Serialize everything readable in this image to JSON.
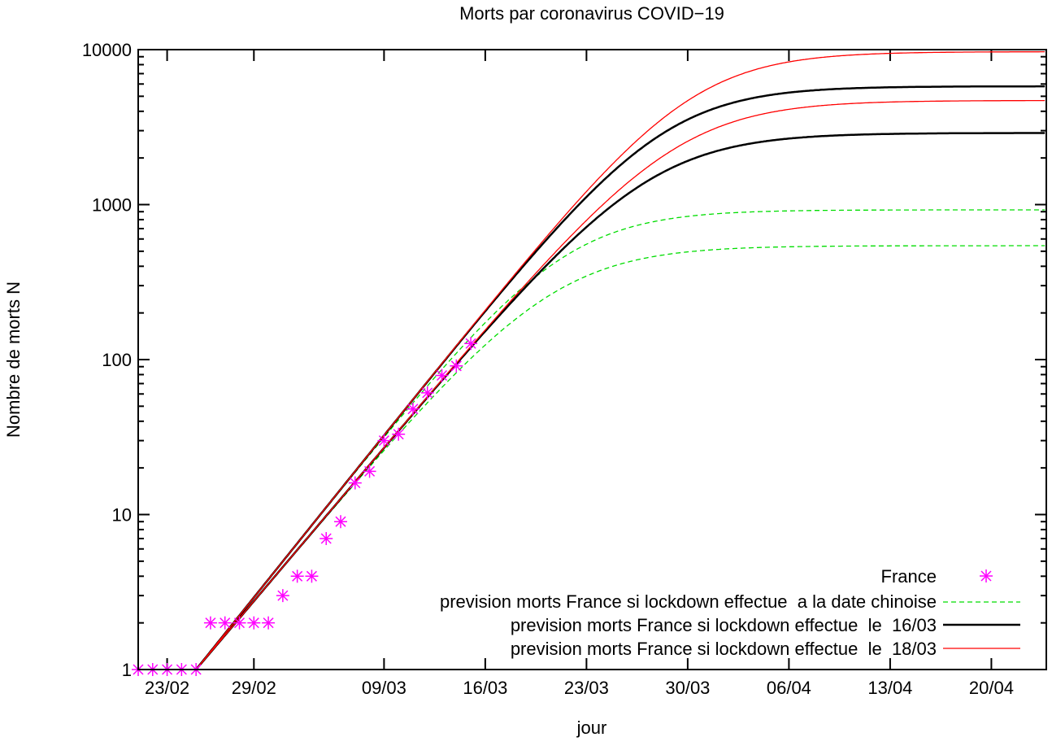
{
  "chart_data": {
    "type": "line",
    "title": "Morts par coronavirus COVID−19",
    "xlabel": "jour",
    "ylabel": "Nombre de morts N",
    "yscale": "log",
    "ylim": [
      1,
      10000
    ],
    "xlim_days": [
      0,
      62.8
    ],
    "x_origin_date": "21/02",
    "yticks": [
      {
        "v": 1,
        "label": "1"
      },
      {
        "v": 10,
        "label": "10"
      },
      {
        "v": 100,
        "label": "100"
      },
      {
        "v": 1000,
        "label": "1000"
      },
      {
        "v": 10000,
        "label": "10000"
      }
    ],
    "xticks": [
      {
        "day": 2,
        "label": "23/02"
      },
      {
        "day": 8,
        "label": "29/02"
      },
      {
        "day": 17,
        "label": "09/03"
      },
      {
        "day": 24,
        "label": "16/03"
      },
      {
        "day": 31,
        "label": "23/03"
      },
      {
        "day": 38,
        "label": "30/03"
      },
      {
        "day": 45,
        "label": "06/04"
      },
      {
        "day": 52,
        "label": "13/04"
      },
      {
        "day": 59,
        "label": "20/04"
      }
    ],
    "legend_position": "bottom-right",
    "points_series": {
      "name": "France",
      "color": "#ff00ff",
      "x": [
        0,
        1,
        2,
        3,
        4,
        5,
        6,
        7,
        8,
        9,
        10,
        11,
        12,
        13,
        14,
        15,
        16,
        17,
        18,
        19,
        20,
        21,
        22,
        23
      ],
      "y": [
        1,
        1,
        1,
        1,
        1,
        2,
        2,
        2,
        2,
        2,
        3,
        4,
        4,
        7,
        9,
        16,
        19,
        30,
        33,
        48,
        61,
        79,
        91,
        127
      ]
    },
    "series": [
      {
        "name": "prevision morts France si lockdown effectue  a la date chinoise",
        "color": "#00dd00",
        "dash": true,
        "model": "logistic",
        "curves": [
          {
            "K": 925,
            "r": 0.268,
            "t0": 4
          },
          {
            "K": 543,
            "r": 0.254,
            "t0": 4
          }
        ]
      },
      {
        "name": "prevision morts France si lockdown effectue  le  16/03",
        "color": "#000000",
        "dash": false,
        "model": "logistic",
        "curves": [
          {
            "K": 5800,
            "r": 0.268,
            "t0": 4
          },
          {
            "K": 2900,
            "r": 0.254,
            "t0": 4
          }
        ]
      },
      {
        "name": "prevision morts France si lockdown effectue  le  18/03",
        "color": "#ff0000",
        "dash": false,
        "model": "logistic",
        "curves": [
          {
            "K": 9700,
            "r": 0.268,
            "t0": 4
          },
          {
            "K": 4700,
            "r": 0.254,
            "t0": 4
          }
        ]
      }
    ]
  }
}
